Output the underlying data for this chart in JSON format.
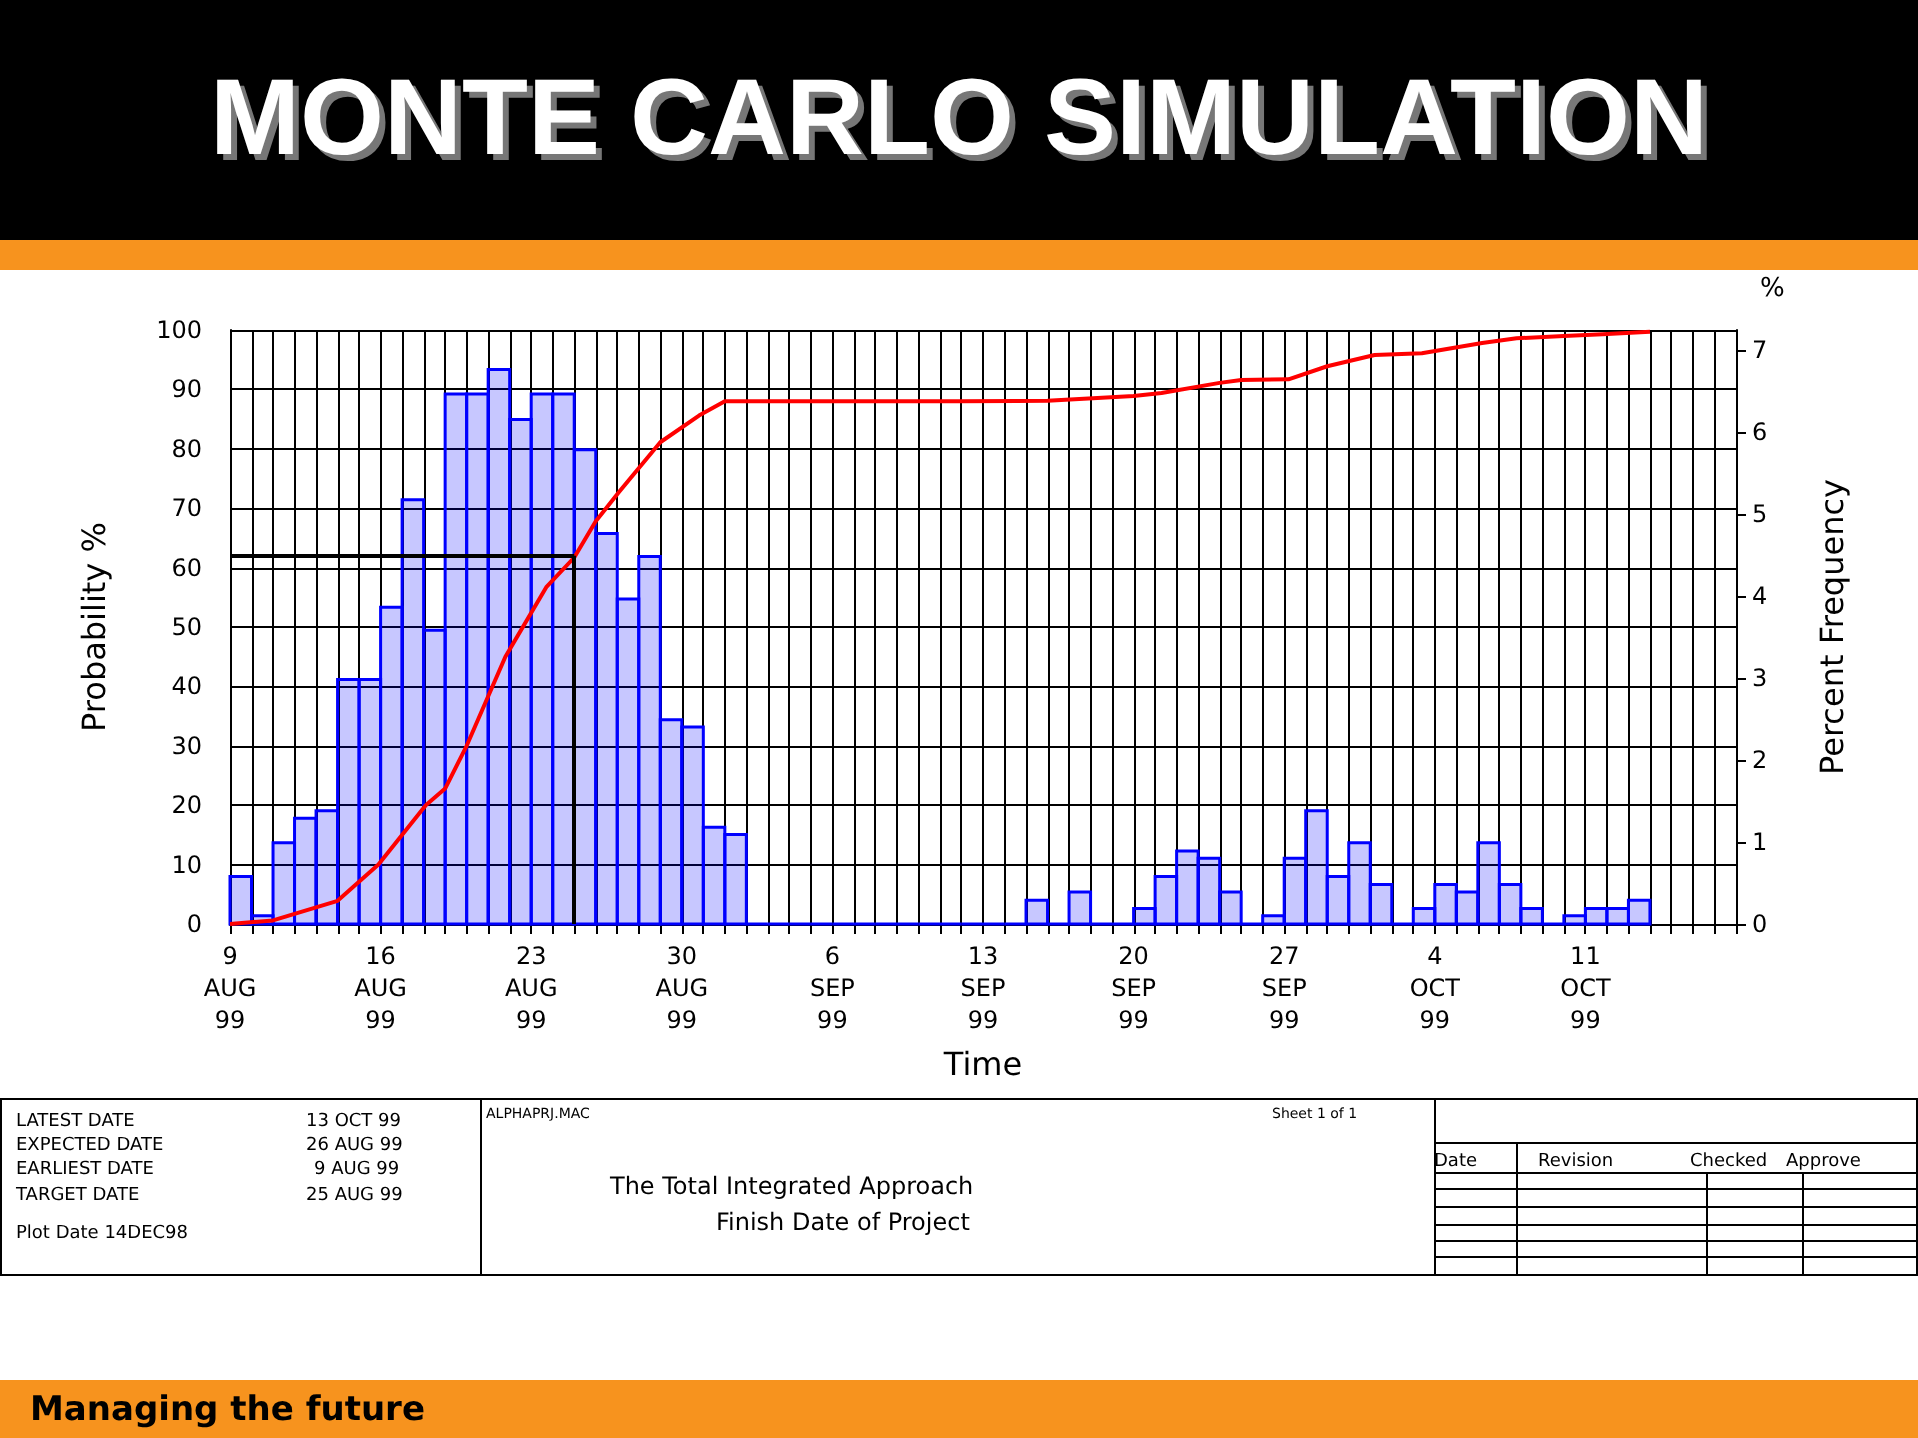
{
  "chart_data": {
    "type": "histogram",
    "title": "MONTE CARLO SIMULATION",
    "xlabel": "Time",
    "ylabel": "Probability %",
    "y2label": "Percent Frequency",
    "bins": [
      "1999-08-09",
      "1999-08-10",
      "1999-08-11",
      "1999-08-12",
      "1999-08-13",
      "1999-08-14",
      "1999-08-15",
      "1999-08-16",
      "1999-08-17",
      "1999-08-18",
      "1999-08-19",
      "1999-08-20",
      "1999-08-21",
      "1999-08-22",
      "1999-08-23",
      "1999-08-24",
      "1999-08-25",
      "1999-08-26",
      "1999-08-27",
      "1999-08-28",
      "1999-08-29",
      "1999-08-30",
      "1999-08-31",
      "1999-09-01",
      "1999-09-02",
      "1999-09-03",
      "1999-09-04",
      "1999-09-05",
      "1999-09-06",
      "1999-09-07",
      "1999-09-08",
      "1999-09-09",
      "1999-09-10",
      "1999-09-11",
      "1999-09-12",
      "1999-09-13",
      "1999-09-14",
      "1999-09-15",
      "1999-09-16",
      "1999-09-17",
      "1999-09-18",
      "1999-09-19",
      "1999-09-20",
      "1999-09-21",
      "1999-09-22",
      "1999-09-23",
      "1999-09-24",
      "1999-09-25",
      "1999-09-26",
      "1999-09-27",
      "1999-09-28",
      "1999-09-29",
      "1999-09-30",
      "1999-10-01",
      "1999-10-02",
      "1999-10-03",
      "1999-10-04",
      "1999-10-05",
      "1999-10-06",
      "1999-10-07",
      "1999-10-08",
      "1999-10-09",
      "1999-10-10",
      "1999-10-11",
      "1999-10-12",
      "1999-10-13",
      "1999-10-14"
    ],
    "series": [
      {
        "axis": "y2",
        "color": "#0000ff",
        "values": [
          0.58,
          0.1,
          0.99,
          1.29,
          1.38,
          2.98,
          2.98,
          3.86,
          5.17,
          3.58,
          6.46,
          6.46,
          6.76,
          6.15,
          6.46,
          6.46,
          5.78,
          4.76,
          3.96,
          4.48,
          2.49,
          2.4,
          1.18,
          1.09,
          0,
          0,
          0,
          0,
          0,
          0,
          0,
          0,
          0,
          0,
          0,
          0,
          0,
          0.29,
          0,
          0.39,
          0,
          0,
          0.19,
          0.58,
          0.89,
          0.8,
          0.39,
          0,
          0.1,
          0.8,
          1.38,
          0.58,
          0.99,
          0.48,
          0,
          0.19,
          0.48,
          0.39,
          0.99,
          0.48,
          0.19,
          0,
          0.1,
          0.19,
          0.19,
          0.29
        ]
      },
      {
        "type": "line",
        "color": "#ff0000",
        "x": [
          "1999-08-09",
          "1999-08-11",
          "1999-08-14",
          "1999-08-15T21:36",
          "1999-08-18T02:24",
          "1999-08-19",
          "1999-08-20",
          "1999-08-21T19:12",
          "1999-08-23T16:48",
          "1999-08-25",
          "1999-08-26",
          "1999-08-27T02:24",
          "1999-08-29",
          "1999-08-30T19:12",
          "1999-09-01",
          "1999-09-11T21:36",
          "1999-09-16",
          "1999-09-20",
          "1999-09-21T07:12",
          "1999-09-24",
          "1999-09-25",
          "1999-09-27T04:48",
          "1999-09-29",
          "1999-10-01T04:48",
          "1999-10-03T09:36",
          "1999-10-06T04:48",
          "1999-10-07T19:12",
          "1999-10-10",
          "1999-10-11T19:12",
          "1999-10-14"
        ],
        "values": [
          0,
          0.6,
          3.9,
          10,
          20,
          22.8,
          30,
          45,
          56.7,
          61.7,
          67.8,
          72.8,
          81.1,
          85.6,
          88,
          88,
          88.1,
          88.9,
          89.4,
          91.1,
          91.6,
          91.7,
          93.9,
          95.8,
          96.1,
          97.8,
          98.6,
          99,
          99.3,
          99.7
        ]
      }
    ],
    "xlim": [
      "1999-08-09",
      "1999-10-18"
    ],
    "xticks": [
      {
        "value": "1999-08-09",
        "label": "9\nAUG\n99"
      },
      {
        "value": "1999-08-10",
        "label": null
      },
      {
        "value": "1999-08-11",
        "label": null
      },
      {
        "value": "1999-08-12",
        "label": null
      },
      {
        "value": "1999-08-13",
        "label": null
      },
      {
        "value": "1999-08-14",
        "label": null
      },
      {
        "value": "1999-08-15",
        "label": null
      },
      {
        "value": "1999-08-16",
        "label": "16\nAUG\n99"
      },
      {
        "value": "1999-08-17",
        "label": null
      },
      {
        "value": "1999-08-18",
        "label": null
      },
      {
        "value": "1999-08-19",
        "label": null
      },
      {
        "value": "1999-08-20",
        "label": null
      },
      {
        "value": "1999-08-21",
        "label": null
      },
      {
        "value": "1999-08-22",
        "label": null
      },
      {
        "value": "1999-08-23",
        "label": "23\nAUG\n99"
      },
      {
        "value": "1999-08-24",
        "label": null
      },
      {
        "value": "1999-08-25",
        "label": null
      },
      {
        "value": "1999-08-26",
        "label": null
      },
      {
        "value": "1999-08-27",
        "label": null
      },
      {
        "value": "1999-08-28",
        "label": null
      },
      {
        "value": "1999-08-29",
        "label": null
      },
      {
        "value": "1999-08-30",
        "label": "30\nAUG\n99"
      },
      {
        "value": "1999-08-31",
        "label": null
      },
      {
        "value": "1999-09-01",
        "label": null
      },
      {
        "value": "1999-09-02",
        "label": null
      },
      {
        "value": "1999-09-03",
        "label": null
      },
      {
        "value": "1999-09-04",
        "label": null
      },
      {
        "value": "1999-09-05",
        "label": null
      },
      {
        "value": "1999-09-06",
        "label": "6\nSEP\n99"
      },
      {
        "value": "1999-09-07",
        "label": null
      },
      {
        "value": "1999-09-08",
        "label": null
      },
      {
        "value": "1999-09-09",
        "label": null
      },
      {
        "value": "1999-09-10",
        "label": null
      },
      {
        "value": "1999-09-11",
        "label": null
      },
      {
        "value": "1999-09-12",
        "label": null
      },
      {
        "value": "1999-09-13",
        "label": "13\nSEP\n99"
      },
      {
        "value": "1999-09-14",
        "label": null
      },
      {
        "value": "1999-09-15",
        "label": null
      },
      {
        "value": "1999-09-16",
        "label": null
      },
      {
        "value": "1999-09-17",
        "label": null
      },
      {
        "value": "1999-09-18",
        "label": null
      },
      {
        "value": "1999-09-19",
        "label": null
      },
      {
        "value": "1999-09-20",
        "label": "20\nSEP\n99"
      },
      {
        "value": "1999-09-21",
        "label": null
      },
      {
        "value": "1999-09-22",
        "label": null
      },
      {
        "value": "1999-09-23",
        "label": null
      },
      {
        "value": "1999-09-24",
        "label": null
      },
      {
        "value": "1999-09-25",
        "label": null
      },
      {
        "value": "1999-09-26",
        "label": null
      },
      {
        "value": "1999-09-27",
        "label": "27\nSEP\n99"
      },
      {
        "value": "1999-09-28",
        "label": null
      },
      {
        "value": "1999-09-29",
        "label": null
      },
      {
        "value": "1999-09-30",
        "label": null
      },
      {
        "value": "1999-10-01",
        "label": null
      },
      {
        "value": "1999-10-02",
        "label": null
      },
      {
        "value": "1999-10-03",
        "label": null
      },
      {
        "value": "1999-10-04",
        "label": "4\nOCT\n99"
      },
      {
        "value": "1999-10-05",
        "label": null
      },
      {
        "value": "1999-10-06",
        "label": null
      },
      {
        "value": "1999-10-07",
        "label": null
      },
      {
        "value": "1999-10-08",
        "label": null
      },
      {
        "value": "1999-10-09",
        "label": null
      },
      {
        "value": "1999-10-10",
        "label": null
      },
      {
        "value": "1999-10-11",
        "label": "11\nOCT\n99"
      },
      {
        "value": "1999-10-12",
        "label": null
      },
      {
        "value": "1999-10-13",
        "label": null
      },
      {
        "value": "1999-10-14",
        "label": null
      },
      {
        "value": "1999-10-15",
        "label": null
      },
      {
        "value": "1999-10-16",
        "label": null
      },
      {
        "value": "1999-10-17",
        "label": null
      },
      {
        "value": "1999-10-18",
        "label": null
      }
    ],
    "ylim": [
      0,
      100
    ],
    "yticks": [
      0,
      10,
      20,
      30,
      40,
      50,
      60,
      70,
      80,
      90,
      100
    ],
    "y2lim": [
      0,
      7.24
    ],
    "y2ticks": [
      0,
      1,
      2,
      3,
      4,
      5,
      6,
      7
    ],
    "grid": true,
    "marker": "none",
    "line_style": "solid",
    "ref_lines": [
      {
        "axis": "y",
        "value": 62,
        "color": "#000000"
      },
      {
        "axis": "x",
        "value": "1999-08-25",
        "color": "#000000"
      }
    ],
    "annotations": [
      "%",
      "LATEST DATE",
      "13 OCT 99",
      "EXPECTED DATE",
      "26 AUG 99",
      "EARLIEST DATE",
      "9 AUG 99",
      "TARGET DATE",
      "25 AUG 99",
      "Plot Date 14DEC98",
      "ALPHAPRJ.MAC",
      "Sheet 1 of 1",
      "The Total Integrated Approach",
      "Finish Date of Project",
      "Date",
      "Revision",
      "Checked",
      "Approve",
      "Managing the future"
    ]
  }
}
